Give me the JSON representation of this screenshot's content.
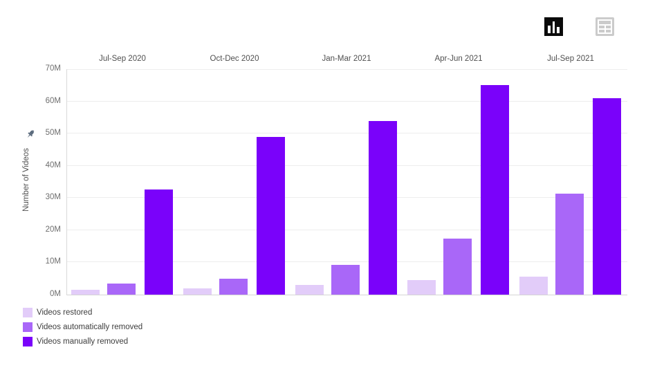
{
  "toolbar": {
    "views": [
      {
        "name": "chart-view",
        "icon": "bar-chart-icon",
        "active": true
      },
      {
        "name": "table-view",
        "icon": "table-grid-icon",
        "active": false
      }
    ]
  },
  "accent_colors": {
    "restored": "#e2ccf9",
    "auto_removed": "#a967f8",
    "manual_removed": "#7a02fa",
    "pin_icon": "#5b6b7d",
    "gridline": "#ededed"
  },
  "chart_data": {
    "type": "bar",
    "title": "",
    "xlabel": "",
    "ylabel": "Number of Videos",
    "unit": "millions",
    "categories": [
      "Jul-Sep 2020",
      "Oct-Dec 2020",
      "Jan-Mar 2021",
      "Apr-Jun 2021",
      "Jul-Sep 2021"
    ],
    "series": [
      {
        "name": "Videos restored",
        "color": "#e2ccf9",
        "values": [
          1.4,
          1.9,
          2.9,
          4.5,
          5.6
        ]
      },
      {
        "name": "Videos automatically removed",
        "color": "#a967f8",
        "values": [
          3.4,
          5.0,
          9.2,
          17.4,
          31.4
        ]
      },
      {
        "name": "Videos manually removed",
        "color": "#7a02fa",
        "values": [
          32.6,
          48.9,
          53.9,
          65.0,
          61.0
        ]
      }
    ],
    "ylim": [
      0,
      70
    ],
    "ytick_step": 10,
    "ytick_suffix": "M",
    "yticks": [
      "0M",
      "10M",
      "20M",
      "30M",
      "40M",
      "50M",
      "60M",
      "70M"
    ],
    "grid": true,
    "legend_position": "bottom-left"
  }
}
